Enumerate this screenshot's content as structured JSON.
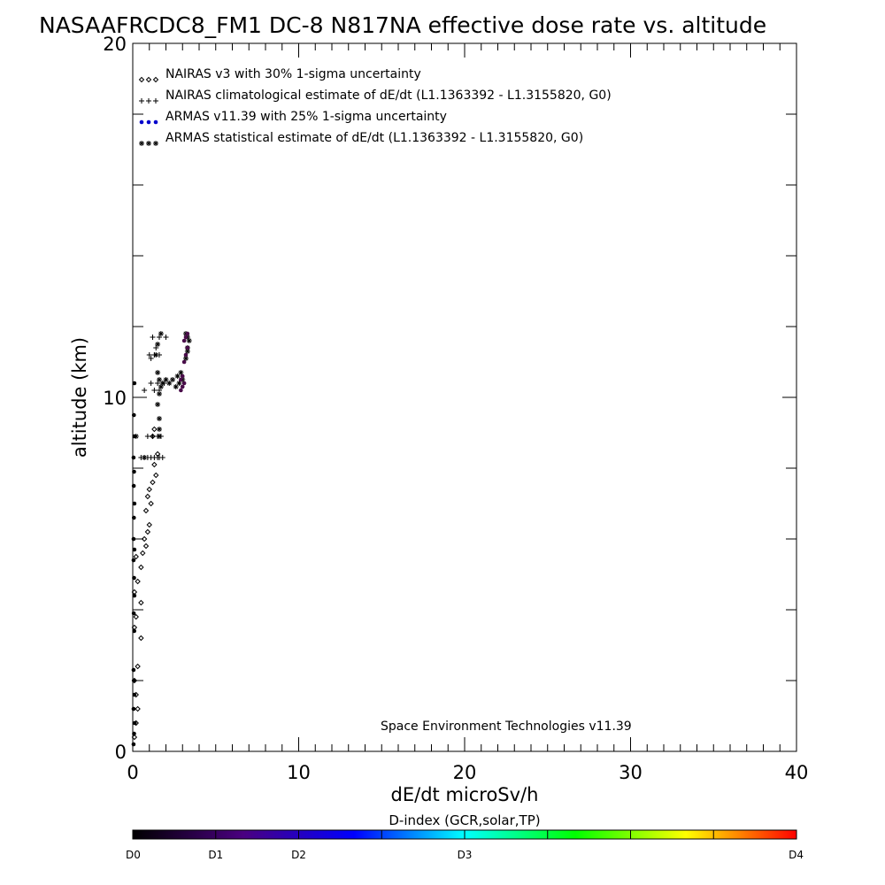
{
  "chart_data": {
    "type": "scatter",
    "title": "NASAAFRCDC8_FM1 DC-8   N817NA effective dose rate vs. altitude",
    "xlabel": "dE/dt microSv/h",
    "ylabel": "altitude (km)",
    "xlim": [
      0,
      40
    ],
    "ylim": [
      0,
      20
    ],
    "x_ticks": [
      "0",
      "10",
      "20",
      "30",
      "40"
    ],
    "y_ticks": [
      "0",
      "10",
      "20"
    ],
    "x_minor_step": 1,
    "y_minor_step": 2,
    "legend_position": "top-left",
    "credit": "Space Environment Technologies v11.39",
    "colorbar": {
      "title": "D-index (GCR,solar,TP)",
      "labels": [
        {
          "text": "D0",
          "value": 0
        },
        {
          "text": "D1",
          "value": 0.125
        },
        {
          "text": "D2",
          "value": 0.25
        },
        {
          "text": "D3",
          "value": 0.5
        },
        {
          "text": "D4",
          "value": 1.0
        }
      ],
      "colors": [
        "#000000",
        "#4a0080",
        "#0000ff",
        "#00ffff",
        "#00ff00",
        "#ffff00",
        "#ff0000"
      ]
    },
    "series": [
      {
        "name": "NAIRAS v3 with 30% 1-sigma uncertainty",
        "marker": "diamond",
        "color": "#000000",
        "x": [
          0.1,
          0.2,
          0.3,
          0.2,
          0.1,
          0.3,
          0.5,
          0.1,
          0.2,
          0.5,
          0.1,
          0.3,
          0.5,
          0.2,
          0.6,
          0.8,
          0.7,
          0.9,
          1.0,
          0.8,
          1.1,
          0.9,
          1.0,
          1.2,
          1.4,
          1.3,
          1.5,
          1.2,
          1.3
        ],
        "y": [
          0.4,
          0.8,
          1.2,
          1.6,
          2.0,
          2.4,
          3.2,
          3.5,
          3.8,
          4.2,
          4.5,
          4.8,
          5.2,
          5.5,
          5.6,
          5.8,
          6.0,
          6.2,
          6.4,
          6.8,
          7.0,
          7.2,
          7.4,
          7.6,
          7.8,
          8.1,
          8.4,
          8.9,
          9.1
        ]
      },
      {
        "name": "NAIRAS climatological estimate of dE/dt (L1.1363392 - L1.3155820, G0)",
        "marker": "plus",
        "color": "#000000",
        "x": [
          0.5,
          0.7,
          0.9,
          1.1,
          1.3,
          1.5,
          1.6,
          1.8,
          0.9,
          1.2,
          1.5,
          1.7,
          0.7,
          1.3,
          1.6,
          1.1,
          1.5,
          1.9,
          1.0,
          1.3,
          1.6,
          1.2,
          1.6,
          2.0,
          1.1,
          1.4
        ],
        "y": [
          8.3,
          8.3,
          8.3,
          8.3,
          8.3,
          8.3,
          8.3,
          8.3,
          8.9,
          8.9,
          8.9,
          8.9,
          10.2,
          10.2,
          10.2,
          10.4,
          10.4,
          10.4,
          11.2,
          11.2,
          11.2,
          11.7,
          11.7,
          11.7,
          11.1,
          11.4
        ]
      },
      {
        "name": "ARMAS v11.39 with 25% 1-sigma uncertainty",
        "marker": "dot",
        "color": "#0000cc",
        "x": [
          0.05,
          0.08,
          0.12,
          0.05,
          0.1,
          0.07,
          0.05,
          0.09,
          0.06,
          0.1,
          0.08,
          0.05,
          0.1,
          0.05,
          0.07,
          0.1,
          0.06,
          0.08,
          0.05,
          0.1,
          0.07,
          0.1,
          3.1,
          3.2,
          3.3,
          3.1,
          3.3,
          3.2,
          2.9,
          3.0,
          3.1,
          2.9,
          3.0
        ],
        "y": [
          0.2,
          0.5,
          0.8,
          1.2,
          1.6,
          2.0,
          2.3,
          3.4,
          3.9,
          4.4,
          4.9,
          5.4,
          5.7,
          6.0,
          6.6,
          7.0,
          7.5,
          7.9,
          8.3,
          8.9,
          9.5,
          10.4,
          11.0,
          11.2,
          11.4,
          11.6,
          11.8,
          11.7,
          10.2,
          10.3,
          10.4,
          10.5,
          10.6
        ]
      },
      {
        "name": "ARMAS statistical estimate of dE/dt (L1.1363392 - L1.3155820, G0)",
        "marker": "asterisk",
        "color": "#000000",
        "x": [
          0.2,
          0.7,
          1.6,
          1.6,
          1.6,
          1.5,
          1.6,
          1.7,
          1.8,
          2.0,
          2.2,
          2.4,
          2.7,
          2.9,
          2.6,
          2.8,
          3.0,
          3.2,
          3.3,
          3.3,
          3.2,
          3.4,
          3.3,
          1.4,
          1.5,
          1.7,
          1.5,
          1.6
        ],
        "y": [
          8.9,
          8.3,
          8.9,
          9.1,
          9.4,
          9.8,
          10.1,
          10.3,
          10.4,
          10.5,
          10.4,
          10.5,
          10.6,
          10.7,
          10.3,
          10.4,
          10.5,
          11.1,
          11.4,
          11.7,
          11.8,
          11.6,
          11.3,
          11.2,
          11.5,
          11.8,
          10.7,
          10.5
        ]
      }
    ]
  }
}
